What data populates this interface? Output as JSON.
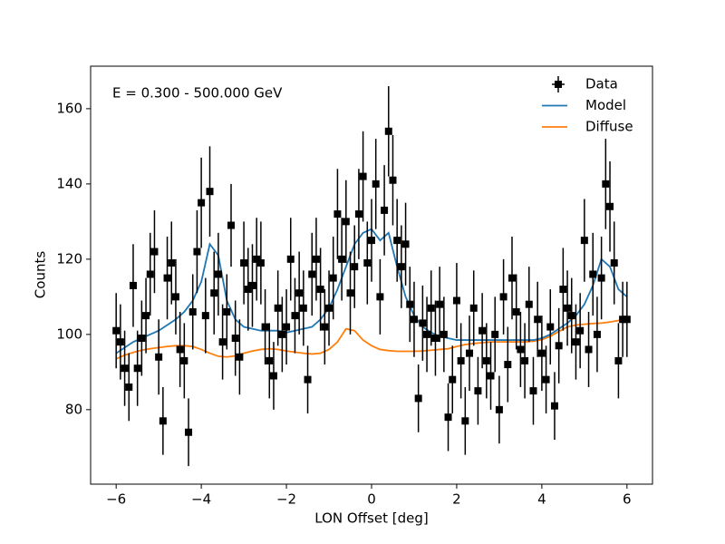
{
  "chart_data": {
    "type": "scatter",
    "annotation": "E = 0.300 - 500.000 GeV",
    "xlabel": "LON Offset [deg]",
    "ylabel": "Counts",
    "xlim": [
      -6.6,
      6.6
    ],
    "ylim": [
      60.2,
      171.3
    ],
    "xticks": [
      {
        "value": -6,
        "label": "−6"
      },
      {
        "value": -4,
        "label": "−4"
      },
      {
        "value": -2,
        "label": "−2"
      },
      0,
      2,
      4,
      6
    ],
    "yticks": [
      80,
      100,
      120,
      140,
      160
    ],
    "legend": "upper right",
    "series": [
      {
        "name": "Data",
        "color": "#000000",
        "style": "errorbar",
        "x": [
          -6.0,
          -5.9,
          -5.8,
          -5.7,
          -5.6,
          -5.5,
          -5.4,
          -5.3,
          -5.2,
          -5.1,
          -5.0,
          -4.9,
          -4.8,
          -4.7,
          -4.6,
          -4.5,
          -4.4,
          -4.3,
          -4.2,
          -4.1,
          -4.0,
          -3.9,
          -3.8,
          -3.7,
          -3.6,
          -3.5,
          -3.4,
          -3.3,
          -3.2,
          -3.1,
          -3.0,
          -2.9,
          -2.8,
          -2.7,
          -2.6,
          -2.5,
          -2.4,
          -2.3,
          -2.2,
          -2.1,
          -2.0,
          -1.9,
          -1.8,
          -1.7,
          -1.6,
          -1.5,
          -1.4,
          -1.3,
          -1.2,
          -1.1,
          -1.0,
          -0.9,
          -0.8,
          -0.7,
          -0.6,
          -0.5,
          -0.4,
          -0.3,
          -0.2,
          -0.1,
          0.0,
          0.1,
          0.2,
          0.3,
          0.4,
          0.5,
          0.6,
          0.7,
          0.8,
          0.9,
          1.0,
          1.1,
          1.2,
          1.3,
          1.4,
          1.5,
          1.6,
          1.7,
          1.8,
          1.9,
          2.0,
          2.1,
          2.2,
          2.3,
          2.4,
          2.5,
          2.6,
          2.7,
          2.8,
          2.9,
          3.0,
          3.1,
          3.2,
          3.3,
          3.4,
          3.5,
          3.6,
          3.7,
          3.8,
          3.9,
          4.0,
          4.1,
          4.2,
          4.3,
          4.4,
          4.5,
          4.6,
          4.7,
          4.8,
          4.9,
          5.0,
          5.1,
          5.2,
          5.3,
          5.4,
          5.5,
          5.6,
          5.7,
          5.8,
          5.9,
          6.0
        ],
        "values": [
          101,
          98,
          91,
          86,
          113,
          91,
          99,
          105,
          116,
          122,
          94,
          77,
          115,
          119,
          110,
          96,
          93,
          74,
          106,
          122,
          135,
          105,
          138,
          111,
          116,
          98,
          106,
          129,
          99,
          94,
          119,
          112,
          113,
          120,
          119,
          102,
          93,
          89,
          107,
          100,
          102,
          120,
          105,
          111,
          107,
          88,
          116,
          120,
          112,
          102,
          107,
          115,
          132,
          120,
          130,
          111,
          118,
          132,
          142,
          119,
          125,
          140,
          110,
          133,
          154,
          141,
          125,
          118,
          124,
          108,
          104,
          83,
          103,
          100,
          107,
          99,
          108,
          100,
          78,
          88,
          109,
          93,
          77,
          95,
          107,
          85,
          101,
          93,
          89,
          100,
          80,
          110,
          92,
          115,
          106,
          96,
          93,
          108,
          85,
          104,
          95,
          88,
          102,
          81,
          97,
          112,
          107,
          105,
          98,
          101,
          125,
          96,
          116,
          100,
          115,
          140,
          134,
          119,
          93,
          104,
          104
        ],
        "errors": [
          10,
          10,
          10,
          9,
          11,
          10,
          10,
          10,
          11,
          11,
          10,
          9,
          11,
          11,
          10,
          10,
          10,
          9,
          10,
          11,
          12,
          10,
          12,
          11,
          11,
          10,
          10,
          11,
          10,
          10,
          11,
          11,
          11,
          11,
          11,
          10,
          10,
          9,
          10,
          10,
          10,
          11,
          10,
          11,
          10,
          9,
          11,
          11,
          11,
          10,
          10,
          11,
          12,
          11,
          11,
          11,
          11,
          12,
          12,
          11,
          11,
          12,
          10,
          12,
          12,
          12,
          11,
          11,
          11,
          10,
          10,
          9,
          10,
          10,
          10,
          10,
          10,
          10,
          9,
          9,
          10,
          10,
          9,
          10,
          10,
          9,
          10,
          10,
          9,
          10,
          9,
          10,
          10,
          11,
          10,
          10,
          10,
          10,
          9,
          10,
          10,
          9,
          10,
          9,
          10,
          11,
          10,
          10,
          10,
          10,
          11,
          10,
          11,
          10,
          11,
          12,
          12,
          11,
          10,
          10,
          10
        ]
      },
      {
        "name": "Model",
        "color": "#1f77b4",
        "style": "line",
        "x": [
          -6.0,
          -5.8,
          -5.6,
          -5.4,
          -5.2,
          -5.0,
          -4.8,
          -4.6,
          -4.4,
          -4.2,
          -4.0,
          -3.8,
          -3.6,
          -3.4,
          -3.2,
          -3.0,
          -2.8,
          -2.6,
          -2.4,
          -2.2,
          -2.0,
          -1.8,
          -1.6,
          -1.4,
          -1.2,
          -1.0,
          -0.8,
          -0.6,
          -0.4,
          -0.2,
          0.0,
          0.2,
          0.4,
          0.6,
          0.8,
          1.0,
          1.2,
          1.4,
          1.6,
          1.8,
          2.0,
          2.2,
          2.4,
          2.6,
          2.8,
          3.0,
          3.2,
          3.4,
          3.6,
          3.8,
          4.0,
          4.2,
          4.4,
          4.6,
          4.8,
          5.0,
          5.2,
          5.4,
          5.6,
          5.8,
          6.0
        ],
        "values": [
          95,
          96.5,
          98,
          99,
          100,
          101,
          102.5,
          104,
          106,
          109,
          114,
          124,
          121,
          109,
          104,
          102,
          101.5,
          101,
          101,
          101,
          100.5,
          101,
          101.5,
          102,
          104,
          107,
          112,
          118,
          124,
          127,
          128,
          125,
          127,
          118,
          110,
          105,
          102,
          100.5,
          99.5,
          99,
          98.5,
          98.5,
          98.5,
          98.5,
          98.5,
          98.5,
          98.5,
          98.5,
          98.5,
          98.5,
          99,
          100,
          101.5,
          103,
          105,
          108,
          113,
          120,
          118,
          112,
          110
        ]
      },
      {
        "name": "Diffuse",
        "color": "#ff7f0e",
        "style": "line",
        "x": [
          -6.0,
          -5.8,
          -5.6,
          -5.4,
          -5.2,
          -5.0,
          -4.8,
          -4.6,
          -4.4,
          -4.2,
          -4.0,
          -3.8,
          -3.6,
          -3.4,
          -3.2,
          -3.0,
          -2.8,
          -2.6,
          -2.4,
          -2.2,
          -2.0,
          -1.8,
          -1.6,
          -1.4,
          -1.2,
          -1.0,
          -0.8,
          -0.6,
          -0.4,
          -0.2,
          0.0,
          0.2,
          0.4,
          0.6,
          0.8,
          1.0,
          1.2,
          1.4,
          1.6,
          1.8,
          2.0,
          2.2,
          2.4,
          2.6,
          2.8,
          3.0,
          3.2,
          3.4,
          3.6,
          3.8,
          4.0,
          4.2,
          4.4,
          4.6,
          4.8,
          5.0,
          5.2,
          5.4,
          5.6,
          5.8,
          6.0
        ],
        "values": [
          93.5,
          94.5,
          95.2,
          95.8,
          96.2,
          96.5,
          96.8,
          97,
          97,
          96.8,
          96,
          95,
          94.2,
          94,
          94.3,
          95,
          95.6,
          96,
          96.2,
          96,
          95.6,
          95.3,
          95,
          94.8,
          95,
          96,
          98,
          101.5,
          101,
          98.5,
          97,
          96,
          95.7,
          95.5,
          95.5,
          95.5,
          95.6,
          95.8,
          96,
          96.2,
          96.8,
          97.3,
          97.6,
          97.8,
          98,
          98,
          98,
          98,
          98,
          98.2,
          98.6,
          99.5,
          100.8,
          102,
          102.5,
          102.7,
          102.9,
          103,
          103.3,
          103.7,
          104
        ]
      }
    ]
  }
}
